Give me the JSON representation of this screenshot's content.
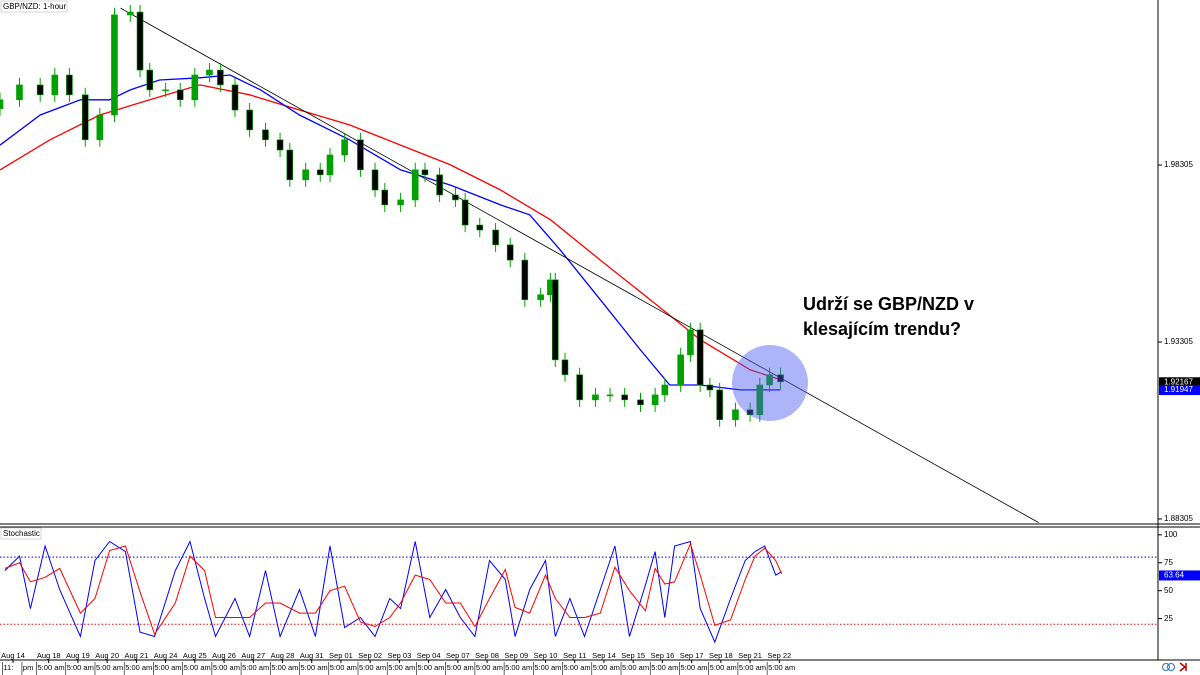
{
  "chart_data": [
    {
      "type": "candlestick",
      "title": "GBP/NZD: 1-hour",
      "xlim": [
        0,
        951
      ],
      "x": [
        0,
        16,
        33,
        45,
        57,
        70,
        82,
        94,
        107,
        115,
        123,
        136,
        148,
        160,
        172,
        181,
        193,
        205,
        218,
        230,
        238,
        251,
        263,
        271,
        283,
        296,
        308,
        316,
        329,
        341,
        349,
        361,
        374,
        382,
        394,
        407,
        419,
        431,
        444,
        452,
        456,
        464,
        476,
        489,
        501,
        513,
        526,
        538,
        546,
        559,
        567,
        575,
        583,
        591,
        604,
        616,
        624,
        632,
        641
      ],
      "open": [
        1.999,
        2.0015,
        2.0057,
        2.0029,
        2.0085,
        2.0029,
        1.9902,
        1.9972,
        2.0255,
        2.0263,
        2.0099,
        2.0043,
        2.0043,
        2.0015,
        2.0085,
        2.0099,
        2.0057,
        1.9986,
        1.993,
        1.9902,
        1.9873,
        1.9789,
        1.9817,
        1.9803,
        1.9859,
        1.9902,
        1.9817,
        1.976,
        1.9718,
        1.9732,
        1.9817,
        1.9803,
        1.9746,
        1.9732,
        1.9661,
        1.9647,
        1.9605,
        1.9562,
        1.945,
        1.9464,
        1.9506,
        1.928,
        1.9238,
        1.9167,
        1.9181,
        1.9181,
        1.9167,
        1.9153,
        1.9181,
        1.9209,
        1.9294,
        1.9365,
        1.9209,
        1.9195,
        1.9111,
        1.9139,
        1.9125,
        1.9209,
        1.9238
      ],
      "high": [
        2.0035,
        2.0077,
        2.0077,
        2.0105,
        2.0105,
        2.0049,
        1.9992,
        2.0275,
        2.0283,
        2.0283,
        2.0119,
        2.0063,
        2.0063,
        2.0105,
        2.0119,
        2.0119,
        2.0077,
        2.0006,
        1.995,
        1.9922,
        1.9893,
        1.9837,
        1.9837,
        1.9879,
        1.9922,
        1.9922,
        1.9837,
        1.978,
        1.9752,
        1.9837,
        1.9837,
        1.9823,
        1.9766,
        1.9752,
        1.9681,
        1.9667,
        1.9625,
        1.9582,
        1.9484,
        1.9526,
        1.9526,
        1.93,
        1.9258,
        1.9201,
        1.9201,
        1.9201,
        1.9187,
        1.9201,
        1.9229,
        1.9314,
        1.9385,
        1.9385,
        1.9229,
        1.9215,
        1.9159,
        1.9159,
        1.9229,
        1.9258,
        1.9258
      ],
      "low": [
        1.997,
        1.9995,
        2.0009,
        2.0009,
        2.0009,
        1.9882,
        1.9882,
        1.9952,
        2.0235,
        2.0079,
        2.0023,
        2.0023,
        1.9995,
        1.9995,
        2.0065,
        2.0037,
        1.9966,
        1.991,
        1.9882,
        1.9853,
        1.9769,
        1.9769,
        1.9783,
        1.9783,
        1.9839,
        1.9797,
        1.974,
        1.9698,
        1.9698,
        1.9712,
        1.9783,
        1.9726,
        1.9712,
        1.9641,
        1.9627,
        1.9585,
        1.9542,
        1.943,
        1.943,
        1.9444,
        1.926,
        1.9218,
        1.9147,
        1.9147,
        1.9161,
        1.9147,
        1.9133,
        1.9133,
        1.9161,
        1.9189,
        1.9274,
        1.9189,
        1.9175,
        1.9091,
        1.9091,
        1.9105,
        1.9105,
        1.9189,
        1.9198
      ],
      "close": [
        2.0015,
        2.0057,
        2.0029,
        2.0085,
        2.0029,
        1.9902,
        1.9972,
        2.0255,
        2.0263,
        2.0099,
        2.0043,
        2.0043,
        2.0015,
        2.0085,
        2.0099,
        2.0057,
        1.9986,
        1.993,
        1.9902,
        1.9873,
        1.9789,
        1.9817,
        1.9803,
        1.9859,
        1.9902,
        1.9817,
        1.976,
        1.9718,
        1.9732,
        1.9817,
        1.9803,
        1.9746,
        1.9732,
        1.9661,
        1.9647,
        1.9605,
        1.9562,
        1.945,
        1.9464,
        1.9506,
        1.928,
        1.9238,
        1.9167,
        1.9181,
        1.9181,
        1.9167,
        1.9153,
        1.9181,
        1.9209,
        1.9294,
        1.9365,
        1.9209,
        1.9195,
        1.9111,
        1.9139,
        1.9125,
        1.9209,
        1.9238,
        1.9218
      ],
      "up_color": "#00a000",
      "down_color": "#000000",
      "lines": [
        {
          "color": "#ff0000",
          "x": [
            0,
            41,
            82,
            123,
            164,
            205,
            246,
            287,
            329,
            370,
            411,
            452,
            493,
            534,
            575,
            616,
            641
          ],
          "values": [
            1.9817,
            1.9902,
            1.9972,
            2.0015,
            2.0057,
            2.0029,
            1.9986,
            1.9944,
            1.9887,
            1.9831,
            1.976,
            1.9676,
            1.9562,
            1.945,
            1.9337,
            1.9252,
            1.9224
          ]
        },
        {
          "color": "#0000ff",
          "x": [
            0,
            33,
            66,
            90,
            107,
            131,
            164,
            189,
            214,
            246,
            287,
            329,
            370,
            411,
            435,
            460,
            493,
            526,
            550,
            575,
            608,
            641
          ],
          "values": [
            1.9887,
            1.9972,
            2.0015,
            2.0015,
            2.0043,
            2.0071,
            2.0077,
            2.0085,
            2.0043,
            1.9972,
            1.9902,
            1.9817,
            1.9774,
            1.9718,
            1.969,
            1.9591,
            1.945,
            1.9308,
            1.9209,
            1.9209,
            1.9195,
            1.9195
          ]
        }
      ],
      "trendline": {
        "color": "#000000",
        "x": [
          99,
          853
        ],
        "values": [
          2.0274,
          1.882
        ]
      },
      "ylim": [
        1.8819,
        2.0297
      ],
      "yticks": [
        1.98305,
        1.93305,
        1.88305
      ],
      "price_tags": [
        {
          "value": 1.92167,
          "color": "#000000"
        },
        {
          "value": 1.91947,
          "color": "#0000ff"
        }
      ],
      "annotation": [
        "Udrží se GBP/NZD v",
        "klesajícím trendu?"
      ],
      "xticks": [
        {
          "value": 10.7,
          "label": "Aug 14"
        },
        {
          "value": 40,
          "label": "Aug 18"
        },
        {
          "value": 64,
          "label": "Aug 19"
        },
        {
          "value": 88,
          "label": "Aug 20"
        },
        {
          "value": 112,
          "label": "Aug 21"
        },
        {
          "value": 136,
          "label": "Aug 24"
        },
        {
          "value": 160,
          "label": "Aug 25"
        },
        {
          "value": 184,
          "label": "Aug 26"
        },
        {
          "value": 208,
          "label": "Aug 27"
        },
        {
          "value": 232,
          "label": "Aug 28"
        },
        {
          "value": 256,
          "label": "Aug 31"
        },
        {
          "value": 280,
          "label": "Sep 01"
        },
        {
          "value": 304,
          "label": "Sep 02"
        },
        {
          "value": 328,
          "label": "Sep 03"
        },
        {
          "value": 352,
          "label": "Sep 04"
        },
        {
          "value": 376,
          "label": "Sep 07"
        },
        {
          "value": 400,
          "label": "Sep 08"
        },
        {
          "value": 424,
          "label": "Sep 09"
        },
        {
          "value": 448,
          "label": "Sep 10"
        },
        {
          "value": 472,
          "label": "Sep 11"
        },
        {
          "value": 496,
          "label": "Sep 14"
        },
        {
          "value": 520,
          "label": "Sep 15"
        },
        {
          "value": 544,
          "label": "Sep 16"
        },
        {
          "value": 568,
          "label": "Sep 17"
        },
        {
          "value": 592,
          "label": "Sep 18"
        },
        {
          "value": 616,
          "label": "Sep 21"
        },
        {
          "value": 640,
          "label": "Sep 22"
        }
      ],
      "time_ticks": [
        {
          "value": 2,
          "label": "11:"
        },
        {
          "value": 18,
          "label": "pm"
        },
        {
          "value": 30,
          "label": "5:00 am"
        },
        {
          "value": 54,
          "label": "5:00 am"
        },
        {
          "value": 78,
          "label": "5:00 am"
        },
        {
          "value": 102,
          "label": "5:00 am"
        },
        {
          "value": 126,
          "label": "5:00 am"
        },
        {
          "value": 150,
          "label": "5:00 am"
        },
        {
          "value": 174,
          "label": "5:00 am"
        },
        {
          "value": 198,
          "label": "5:00 am"
        },
        {
          "value": 222,
          "label": "5:00 am"
        },
        {
          "value": 246,
          "label": "5:00 am"
        },
        {
          "value": 270,
          "label": "5:00 am"
        },
        {
          "value": 294,
          "label": "5:00 am"
        },
        {
          "value": 318,
          "label": "5:00 am"
        },
        {
          "value": 342,
          "label": "5:00 am"
        },
        {
          "value": 366,
          "label": "5:00 am"
        },
        {
          "value": 390,
          "label": "5:00 am"
        },
        {
          "value": 414,
          "label": "5:00 am"
        },
        {
          "value": 438,
          "label": "5:00 am"
        },
        {
          "value": 462,
          "label": "5:00 am"
        },
        {
          "value": 486,
          "label": "5:00 am"
        },
        {
          "value": 510,
          "label": "5:00 am"
        },
        {
          "value": 534,
          "label": "5:00 am"
        },
        {
          "value": 558,
          "label": "5:00 am"
        },
        {
          "value": 582,
          "label": "5:00 am"
        },
        {
          "value": 606,
          "label": "5:00 am"
        },
        {
          "value": 630,
          "label": "5:00 am"
        }
      ]
    },
    {
      "type": "line",
      "title": "Stochastic",
      "x": [
        4,
        16,
        25,
        37,
        49,
        66,
        78,
        90,
        103,
        115,
        127,
        144,
        156,
        168,
        177,
        193,
        205,
        218,
        230,
        246,
        259,
        271,
        283,
        296,
        308,
        320,
        329,
        341,
        353,
        366,
        378,
        390,
        402,
        415,
        423,
        435,
        448,
        456,
        468,
        480,
        493,
        505,
        517,
        530,
        538,
        546,
        554,
        567,
        575,
        587,
        600,
        612,
        620,
        628,
        637,
        642
      ],
      "series": [
        {
          "color": "#0000ff",
          "values": [
            68,
            81,
            34,
            90,
            51,
            9,
            77,
            94,
            85,
            13,
            9,
            68,
            94,
            43,
            9,
            43,
            9,
            68,
            9,
            51,
            9,
            90,
            17,
            26,
            9,
            43,
            34,
            94,
            26,
            51,
            26,
            9,
            77,
            60,
            9,
            51,
            77,
            9,
            43,
            9,
            51,
            90,
            9,
            55,
            85,
            26,
            90,
            94,
            34,
            4,
            43,
            77,
            85,
            90,
            64,
            67
          ]
        },
        {
          "color": "#ff0000",
          "values": [
            70,
            75,
            58,
            62,
            70,
            30,
            43,
            86,
            90,
            49,
            11,
            39,
            81,
            68,
            26,
            26,
            26,
            39,
            39,
            30,
            30,
            50,
            54,
            22,
            18,
            26,
            39,
            64,
            60,
            39,
            39,
            18,
            43,
            69,
            35,
            30,
            64,
            43,
            26,
            26,
            30,
            71,
            50,
            32,
            70,
            56,
            58,
            92,
            64,
            19,
            24,
            60,
            81,
            88,
            77,
            65
          ]
        }
      ],
      "ylim": [
        -12,
        107
      ],
      "yticks": [
        25,
        50,
        75,
        100
      ],
      "levels": [
        {
          "value": 80,
          "color": "#0000cc"
        },
        {
          "value": 20,
          "color": "#ff0000"
        }
      ],
      "value_tag": {
        "value": 63.64,
        "color": "#0000ff"
      }
    }
  ]
}
